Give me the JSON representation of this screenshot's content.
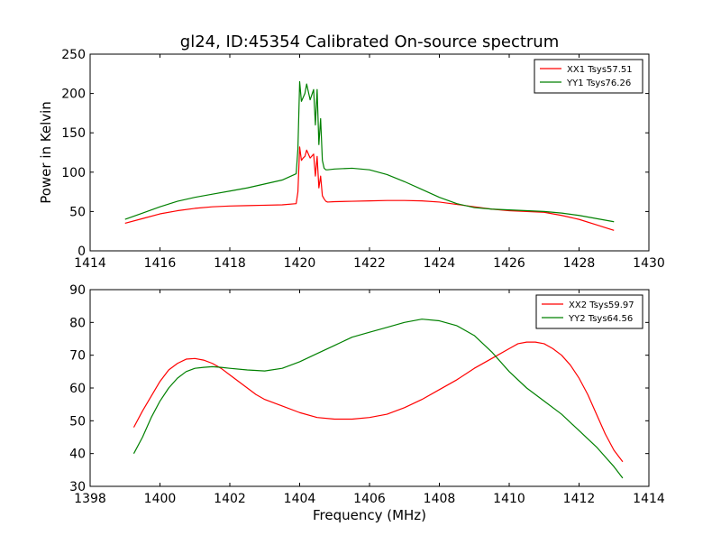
{
  "chart_data": [
    {
      "type": "line",
      "title": "gl24, ID:45354 Calibrated On-source spectrum",
      "xlabel": "",
      "ylabel": "Power in Kelvin",
      "xlim": [
        1414,
        1430
      ],
      "ylim": [
        0,
        250
      ],
      "xticks": [
        1414,
        1416,
        1418,
        1420,
        1422,
        1424,
        1426,
        1428,
        1430
      ],
      "yticks": [
        0,
        50,
        100,
        150,
        200,
        250
      ],
      "grid": false,
      "legend_position": "top-right",
      "colors": {
        "XX1 Tsys57.51": "#ff0000",
        "YY1 Tsys76.26": "#008000"
      },
      "series": [
        {
          "name": "XX1 Tsys57.51",
          "color": "#ff0000",
          "x": [
            1415,
            1415.5,
            1416,
            1416.5,
            1417,
            1417.5,
            1418,
            1418.5,
            1419,
            1419.5,
            1419.9,
            1419.95,
            1420.0,
            1420.05,
            1420.1,
            1420.15,
            1420.2,
            1420.3,
            1420.4,
            1420.45,
            1420.5,
            1420.55,
            1420.6,
            1420.65,
            1420.7,
            1420.75,
            1420.8,
            1421,
            1421.5,
            1422,
            1422.5,
            1423,
            1423.5,
            1424,
            1424.5,
            1425,
            1425.5,
            1426,
            1426.5,
            1427,
            1427.5,
            1428,
            1428.5,
            1429
          ],
          "y": [
            35,
            41,
            47,
            51,
            54,
            56,
            57,
            57.5,
            58,
            58.5,
            60,
            75,
            132,
            115,
            118,
            120,
            128,
            118,
            123,
            95,
            120,
            80,
            95,
            70,
            66,
            63,
            62,
            62.5,
            63,
            63.5,
            64,
            64,
            63.5,
            62,
            59,
            56,
            53,
            51,
            50,
            49,
            45,
            40,
            33,
            26
          ]
        },
        {
          "name": "YY1 Tsys76.26",
          "color": "#008000",
          "x": [
            1415,
            1415.5,
            1416,
            1416.5,
            1417,
            1417.5,
            1418,
            1418.5,
            1419,
            1419.5,
            1419.9,
            1419.95,
            1420.0,
            1420.05,
            1420.1,
            1420.15,
            1420.2,
            1420.3,
            1420.4,
            1420.45,
            1420.5,
            1420.55,
            1420.6,
            1420.65,
            1420.7,
            1420.75,
            1420.8,
            1421,
            1421.5,
            1422,
            1422.5,
            1423,
            1423.5,
            1424,
            1424.5,
            1425,
            1425.5,
            1426,
            1426.5,
            1427,
            1427.5,
            1428,
            1428.5,
            1429
          ],
          "y": [
            40,
            48,
            56,
            63,
            68,
            72,
            76,
            80,
            85,
            90,
            98,
            130,
            215,
            190,
            195,
            200,
            212,
            192,
            205,
            160,
            205,
            135,
            168,
            115,
            105,
            103,
            103,
            104,
            105,
            103,
            97,
            88,
            78,
            68,
            60,
            55,
            53,
            52,
            51,
            50,
            48,
            45,
            41,
            37
          ]
        }
      ]
    },
    {
      "type": "line",
      "title": "",
      "xlabel": "Frequency (MHz)",
      "ylabel": "",
      "xlim": [
        1398,
        1414
      ],
      "ylim": [
        30,
        90
      ],
      "xticks": [
        1398,
        1400,
        1402,
        1404,
        1406,
        1408,
        1410,
        1412,
        1414
      ],
      "yticks": [
        30,
        40,
        50,
        60,
        70,
        80,
        90
      ],
      "grid": false,
      "legend_position": "top-right",
      "colors": {
        "XX2 Tsys59.97": "#ff0000",
        "YY2 Tsys64.56": "#008000"
      },
      "series": [
        {
          "name": "XX2 Tsys59.97",
          "color": "#ff0000",
          "x": [
            1399.25,
            1399.5,
            1399.75,
            1400,
            1400.25,
            1400.5,
            1400.75,
            1401,
            1401.25,
            1401.5,
            1401.75,
            1402,
            1402.25,
            1402.5,
            1402.75,
            1403,
            1403.5,
            1404,
            1404.5,
            1405,
            1405.5,
            1406,
            1406.5,
            1407,
            1407.5,
            1408,
            1408.5,
            1409,
            1409.5,
            1410,
            1410.25,
            1410.5,
            1410.75,
            1411,
            1411.25,
            1411.5,
            1411.75,
            1412,
            1412.25,
            1412.5,
            1412.75,
            1413,
            1413.25
          ],
          "y": [
            48,
            53,
            57.5,
            62,
            65.5,
            67.5,
            68.8,
            69,
            68.5,
            67.5,
            66,
            64,
            62,
            60,
            58,
            56.5,
            54.5,
            52.5,
            51,
            50.5,
            50.5,
            51,
            52,
            54,
            56.5,
            59.5,
            62.5,
            66,
            69,
            72,
            73.5,
            74,
            74,
            73.5,
            72,
            70,
            67,
            63,
            58,
            52,
            46,
            41,
            37.5
          ]
        },
        {
          "name": "YY2 Tsys64.56",
          "color": "#008000",
          "x": [
            1399.25,
            1399.5,
            1399.75,
            1400,
            1400.25,
            1400.5,
            1400.75,
            1401,
            1401.25,
            1401.5,
            1401.75,
            1402,
            1402.5,
            1403,
            1403.5,
            1404,
            1404.5,
            1405,
            1405.5,
            1406,
            1406.5,
            1407,
            1407.5,
            1408,
            1408.5,
            1409,
            1409.5,
            1410,
            1410.5,
            1411,
            1411.5,
            1412,
            1412.5,
            1413,
            1413.25
          ],
          "y": [
            40,
            45,
            51,
            56,
            60,
            63,
            65,
            66,
            66.3,
            66.5,
            66.3,
            66,
            65.5,
            65.2,
            66,
            68,
            70.5,
            73,
            75.5,
            77,
            78.5,
            80,
            81,
            80.5,
            79,
            76,
            71,
            65,
            60,
            56,
            52,
            47,
            42,
            36,
            32.5
          ]
        }
      ]
    }
  ]
}
